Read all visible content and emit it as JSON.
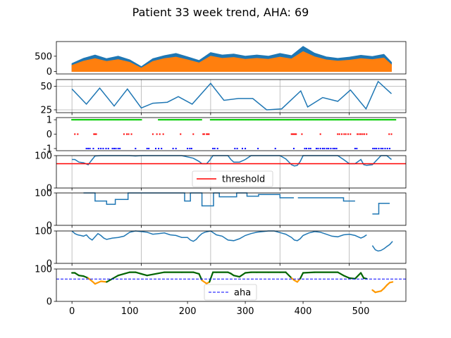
{
  "title": "Patient 33 week trend, AHA: 69",
  "chart_data": [
    {
      "type": "area",
      "panel": 1,
      "xlim": [
        -27,
        578
      ],
      "ylim": [
        -80,
        980
      ],
      "yticks": [
        0,
        500
      ],
      "grid": false,
      "series": [
        {
          "color": "#1f77b4",
          "x": [
            0,
            20,
            40,
            60,
            80,
            100,
            120,
            140,
            160,
            180,
            200,
            220,
            240,
            260,
            280,
            300,
            320,
            340,
            360,
            380,
            400,
            420,
            440,
            460,
            480,
            500,
            520,
            540,
            553
          ],
          "values": [
            260,
            430,
            540,
            420,
            500,
            380,
            160,
            420,
            520,
            590,
            480,
            360,
            620,
            540,
            570,
            500,
            540,
            500,
            590,
            520,
            820,
            600,
            480,
            430,
            470,
            530,
            490,
            560,
            300
          ]
        },
        {
          "color": "#ff7f0e",
          "x": [
            0,
            20,
            40,
            60,
            80,
            100,
            120,
            140,
            160,
            180,
            200,
            220,
            240,
            260,
            280,
            300,
            320,
            340,
            360,
            380,
            400,
            420,
            440,
            460,
            480,
            500,
            520,
            540,
            553
          ],
          "values": [
            200,
            340,
            420,
            330,
            390,
            300,
            110,
            330,
            420,
            470,
            380,
            280,
            500,
            430,
            460,
            400,
            430,
            400,
            470,
            410,
            650,
            480,
            380,
            340,
            370,
            420,
            390,
            440,
            220
          ]
        }
      ]
    },
    {
      "type": "line",
      "panel": 2,
      "xlim": [
        -27,
        578
      ],
      "ylim": [
        22,
        57
      ],
      "yticks": [
        25,
        50
      ],
      "grid": true,
      "x": [
        0,
        25,
        48,
        73,
        96,
        120,
        140,
        165,
        184,
        208,
        240,
        263,
        288,
        313,
        337,
        363,
        396,
        408,
        434,
        460,
        482,
        509,
        530,
        553
      ],
      "values": [
        47,
        31,
        48,
        29,
        47,
        27,
        32,
        33,
        39,
        31,
        53,
        35,
        37,
        37,
        25,
        26,
        45,
        28,
        38,
        34,
        46,
        26,
        55,
        42
      ]
    },
    {
      "type": "scatter",
      "panel": 3,
      "xlim": [
        -27,
        578
      ],
      "ylim": [
        -1.15,
        1.15
      ],
      "yticks": [
        -1,
        0,
        1
      ],
      "series": [
        {
          "color": "#00cc00",
          "y": 1,
          "x_ranges": [
            [
              0,
              120
            ],
            [
              150,
              225
            ],
            [
              240,
              560
            ]
          ]
        },
        {
          "color": "#ff0000",
          "y": 0,
          "x": [
            5,
            10,
            38,
            40,
            42,
            90,
            95,
            98,
            103,
            140,
            147,
            152,
            158,
            188,
            210,
            227,
            229,
            233,
            235,
            237,
            380,
            382,
            384,
            386,
            388,
            398,
            430,
            460,
            463,
            467,
            471,
            474,
            478,
            482,
            494,
            497,
            500,
            503,
            506,
            510,
            549,
            553
          ]
        },
        {
          "color": "#0000ff",
          "y": -1,
          "x": [
            25,
            28,
            31,
            37,
            46,
            50,
            54,
            59,
            63,
            70,
            73,
            76,
            80,
            83,
            110,
            130,
            133,
            145,
            150,
            155,
            175,
            180,
            200,
            204,
            207,
            244,
            247,
            252,
            282,
            286,
            295,
            300,
            322,
            352,
            384,
            403,
            406,
            410,
            413,
            423,
            426,
            430,
            434,
            437,
            441,
            444,
            448,
            452,
            455,
            458,
            490,
            493,
            521,
            524,
            527,
            531,
            535,
            538,
            542,
            546,
            550
          ]
        }
      ]
    },
    {
      "type": "line",
      "panel": 4,
      "xlim": [
        -27,
        578
      ],
      "ylim": [
        0,
        100
      ],
      "yticks": [
        0,
        100
      ],
      "grid": true,
      "threshold": 75,
      "legend": [
        "threshold"
      ],
      "legend_position": "lower-center",
      "x": [
        0,
        5,
        12,
        20,
        28,
        35,
        40,
        50,
        60,
        80,
        100,
        110,
        120,
        130,
        160,
        190,
        210,
        220,
        225,
        233,
        238,
        244,
        250,
        270,
        275,
        280,
        290,
        300,
        310,
        320,
        340,
        360,
        370,
        380,
        385,
        390,
        395,
        400,
        420,
        460,
        470,
        480,
        490,
        500,
        505,
        510,
        520,
        535,
        545,
        553
      ],
      "values": [
        88,
        88,
        80,
        78,
        72,
        88,
        99,
        100,
        100,
        100,
        100,
        99,
        100,
        100,
        100,
        100,
        92,
        82,
        75,
        75,
        85,
        100,
        100,
        100,
        88,
        80,
        80,
        88,
        100,
        100,
        100,
        100,
        90,
        72,
        68,
        70,
        82,
        100,
        100,
        100,
        88,
        75,
        75,
        88,
        72,
        70,
        72,
        100,
        100,
        88
      ]
    },
    {
      "type": "line",
      "panel": 5,
      "xlim": [
        -27,
        578
      ],
      "ylim": [
        0,
        100
      ],
      "yticks": [
        0,
        100
      ],
      "grid": true,
      "x": [
        20,
        20,
        40,
        40,
        60,
        60,
        75,
        75,
        97,
        97,
        120,
        120,
        135,
        135,
        150,
        150,
        180,
        180,
        195,
        195,
        205,
        205,
        225,
        225,
        245,
        245,
        255,
        255,
        285,
        285,
        303,
        303,
        323,
        323,
        360,
        360,
        384,
        384,
        391,
        391,
        450,
        450,
        470,
        470,
        490,
        490,
        506,
        506,
        520,
        520,
        531,
        531,
        550
      ],
      "values": [
        100,
        100,
        100,
        75,
        75,
        65,
        65,
        80,
        80,
        100,
        100,
        100,
        100,
        100,
        100,
        100,
        100,
        100,
        100,
        75,
        75,
        100,
        100,
        60,
        60,
        100,
        100,
        88,
        88,
        100,
        100,
        90,
        90,
        95,
        95,
        85,
        85,
        null,
        null,
        85,
        85,
        85,
        85,
        75,
        75,
        null,
        null,
        null,
        null,
        35,
        35,
        68,
        68
      ]
    },
    {
      "type": "line",
      "panel": 6,
      "xlim": [
        -27,
        578
      ],
      "ylim": [
        0,
        100
      ],
      "yticks": [
        0,
        100
      ],
      "grid": true,
      "x": [
        0,
        5,
        10,
        15,
        20,
        25,
        30,
        35,
        40,
        45,
        50,
        55,
        60,
        70,
        80,
        90,
        100,
        110,
        120,
        130,
        140,
        150,
        160,
        170,
        180,
        190,
        200,
        205,
        210,
        215,
        220,
        225,
        230,
        240,
        250,
        260,
        270,
        280,
        290,
        300,
        310,
        320,
        330,
        340,
        350,
        360,
        370,
        380,
        385,
        390,
        395,
        400,
        410,
        420,
        430,
        440,
        450,
        460,
        470,
        480,
        490,
        500,
        505,
        510,
        null,
        520,
        525,
        530,
        535,
        540,
        545,
        550,
        555
      ],
      "values": [
        100,
        92,
        88,
        86,
        84,
        88,
        78,
        72,
        82,
        92,
        86,
        78,
        74,
        78,
        80,
        84,
        96,
        100,
        98,
        96,
        90,
        92,
        94,
        88,
        86,
        80,
        80,
        72,
        68,
        74,
        84,
        92,
        96,
        100,
        88,
        84,
        72,
        70,
        76,
        86,
        92,
        96,
        98,
        100,
        100,
        95,
        90,
        80,
        72,
        70,
        76,
        86,
        94,
        98,
        96,
        90,
        84,
        82,
        88,
        90,
        86,
        78,
        82,
        88,
        null,
        55,
        42,
        38,
        40,
        45,
        52,
        58,
        68
      ]
    },
    {
      "type": "line",
      "panel": 7,
      "xlim": [
        -27,
        578
      ],
      "ylim": [
        0,
        100
      ],
      "yticks": [
        0,
        100
      ],
      "xticks": [
        0,
        100,
        200,
        300,
        400,
        500
      ],
      "grid": false,
      "aha": 69,
      "legend": [
        "aha"
      ],
      "legend_position": "lower-center",
      "high_color": "#006400",
      "low_color": "#ff9900",
      "x": [
        0,
        5,
        12,
        20,
        28,
        35,
        40,
        50,
        60,
        80,
        100,
        110,
        120,
        130,
        160,
        190,
        210,
        220,
        225,
        233,
        238,
        244,
        250,
        270,
        275,
        280,
        290,
        300,
        310,
        320,
        340,
        360,
        370,
        380,
        385,
        390,
        395,
        400,
        420,
        460,
        470,
        480,
        490,
        500,
        505,
        510,
        null,
        520,
        525,
        530,
        535,
        540,
        545,
        550,
        555
      ],
      "values": [
        88,
        88,
        80,
        78,
        72,
        62,
        54,
        62,
        60,
        80,
        90,
        90,
        85,
        80,
        90,
        90,
        90,
        85,
        65,
        55,
        60,
        90,
        90,
        90,
        86,
        80,
        76,
        88,
        90,
        90,
        90,
        90,
        90,
        72,
        65,
        60,
        70,
        88,
        90,
        90,
        80,
        72,
        70,
        88,
        72,
        70,
        null,
        35,
        28,
        30,
        32,
        40,
        50,
        58,
        60
      ]
    }
  ]
}
